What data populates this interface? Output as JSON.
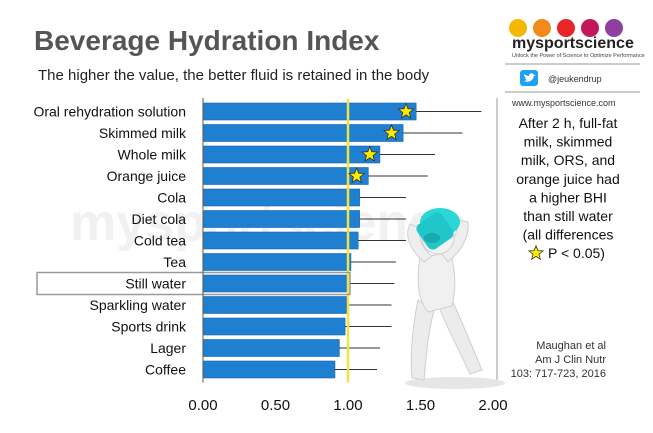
{
  "header": {
    "title": "Beverage Hydration Index",
    "subtitle": "The higher the value, the better fluid is retained in the body"
  },
  "brand": {
    "name": "mysportscience",
    "tagline": "Unlock the Power of Science to Optimize Performance",
    "twitter_handle": "@jeukendrup",
    "website": "www.mysportscience.com",
    "dot_colors": [
      "#f5b800",
      "#f08a1c",
      "#e8262a",
      "#c2185b",
      "#8e3fa0"
    ],
    "watermark": "mysportscience"
  },
  "note": {
    "lines": [
      "After 2 h, full-fat",
      "milk, skimmed",
      "milk, ORS, and",
      "orange juice had",
      "a higher BHI",
      "than still water",
      "(all differences"
    ],
    "star_line": "P < 0.05)"
  },
  "citation": {
    "lines": [
      "Maughan et al",
      "Am J Clin Nutr",
      "103: 717-723, 2016"
    ]
  },
  "colors": {
    "bar": "#1f7fd1",
    "bar_edge": "#1565b3",
    "reference_line": "#f0e442",
    "star": "#ffea00",
    "highlight_box": "#9a9a9a"
  },
  "chart_data": {
    "type": "bar",
    "orientation": "horizontal",
    "categories": [
      "Oral rehydration solution",
      "Skimmed milk",
      "Whole milk",
      "Orange juice",
      "Cola",
      "Diet cola",
      "Cold tea",
      "Tea",
      "Still water",
      "Sparkling water",
      "Sports drink",
      "Lager",
      "Coffee"
    ],
    "values": [
      1.47,
      1.38,
      1.22,
      1.14,
      1.08,
      1.08,
      1.07,
      1.02,
      1.0,
      0.99,
      0.98,
      0.94,
      0.91
    ],
    "error_upper": [
      1.92,
      1.79,
      1.6,
      1.55,
      1.4,
      1.4,
      1.4,
      1.33,
      1.32,
      1.3,
      1.3,
      1.22,
      1.2
    ],
    "significant": [
      true,
      true,
      true,
      true,
      false,
      false,
      false,
      false,
      false,
      false,
      false,
      false,
      false
    ],
    "star_positions": [
      1.4,
      1.3,
      1.15,
      1.06,
      null,
      null,
      null,
      null,
      null,
      null,
      null,
      null,
      null
    ],
    "highlighted_category": "Still water",
    "reference_value": 1.0,
    "xticks": [
      "0.00",
      "0.50",
      "1.00",
      "1.50",
      "2.00"
    ],
    "xlim": [
      0,
      2.0
    ],
    "title": "Beverage Hydration Index",
    "xlabel": "",
    "ylabel": "",
    "grid": false
  }
}
